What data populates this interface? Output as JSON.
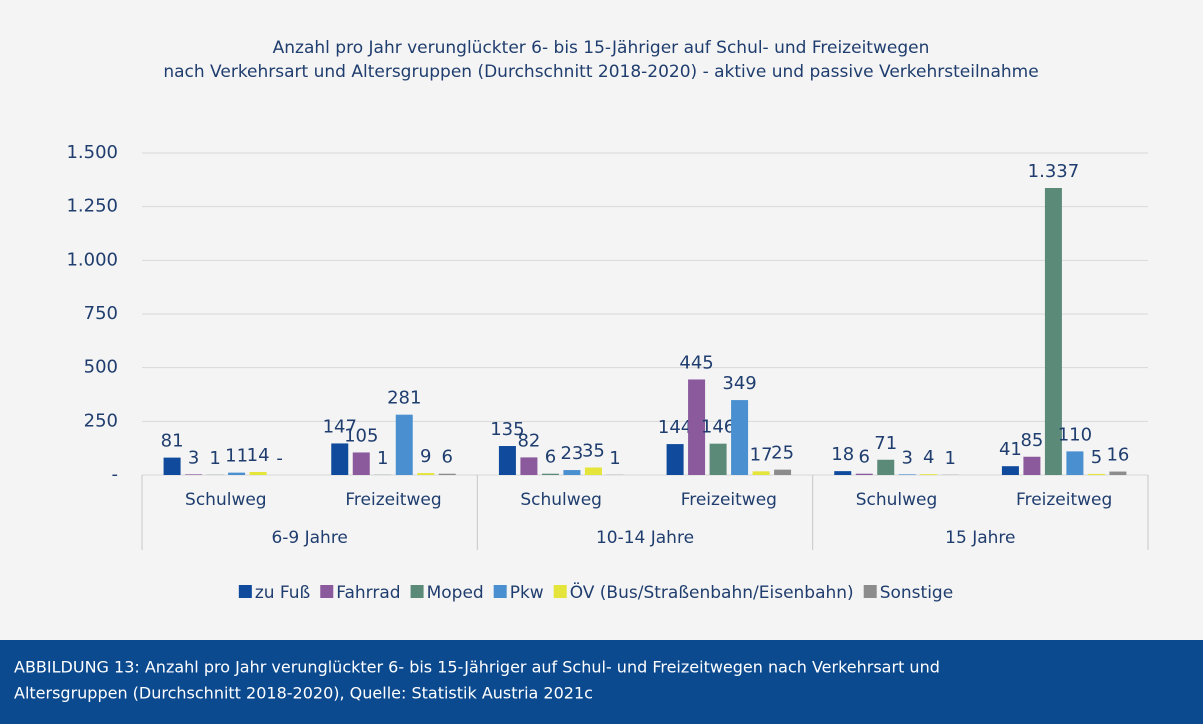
{
  "chart_data": {
    "type": "bar",
    "title": [
      "Anzahl pro Jahr verunglückter 6- bis 15-Jähriger auf Schul- und Freizeitwegen",
      "nach Verkehrsart und Altersgruppen (Durchschnitt 2018-2020) - aktive und passive Verkehrsteilnahme"
    ],
    "categories": [
      "Schulweg",
      "Freizeitweg",
      "Schulweg",
      "Freizeitweg",
      "Schulweg",
      "Freizeitweg"
    ],
    "groups": [
      "6-9 Jahre",
      "10-14 Jahre",
      "15 Jahre"
    ],
    "series": [
      {
        "name": "zu Fuß",
        "color": "#0f4a9c",
        "values": [
          81,
          147,
          135,
          144,
          18,
          41
        ]
      },
      {
        "name": "Fahrrad",
        "color": "#8a5a9c",
        "values": [
          3,
          105,
          82,
          445,
          6,
          85
        ]
      },
      {
        "name": "Moped",
        "color": "#5b8a78",
        "values": [
          1,
          1,
          6,
          146,
          71,
          1337
        ],
        "value_labels": [
          "1",
          "1",
          "6",
          "146",
          "71",
          "1.337"
        ]
      },
      {
        "name": "Pkw",
        "color": "#4a8fd0",
        "values": [
          11,
          281,
          23,
          349,
          3,
          110
        ]
      },
      {
        "name": "ÖV (Bus/Straßenbahn/Eisenbahn)",
        "color": "#e4e43a",
        "values": [
          14,
          9,
          35,
          17,
          4,
          5
        ]
      },
      {
        "name": "Sonstige",
        "color": "#8c8c8c",
        "values": [
          0,
          6,
          1,
          25,
          1,
          16
        ],
        "value_labels": [
          "-",
          "6",
          "1",
          "25",
          "1",
          "16"
        ]
      }
    ],
    "ylim": [
      0,
      1500
    ],
    "yticks": [
      {
        "value": 0,
        "label": "-"
      },
      250,
      500,
      750,
      {
        "value": 1000,
        "label": "1.000"
      },
      {
        "value": 1250,
        "label": "1.250"
      },
      {
        "value": 1500,
        "label": "1.500"
      }
    ],
    "grid": true,
    "legend": "bottom"
  },
  "caption": [
    "ABBILDUNG 13: Anzahl pro Jahr verunglückter 6- bis 15-Jähriger auf Schul- und Freizeitwegen nach Verkehrsart und",
    "Altersgruppen (Durchschnitt 2018-2020), Quelle: Statistik Austria 2021c"
  ]
}
